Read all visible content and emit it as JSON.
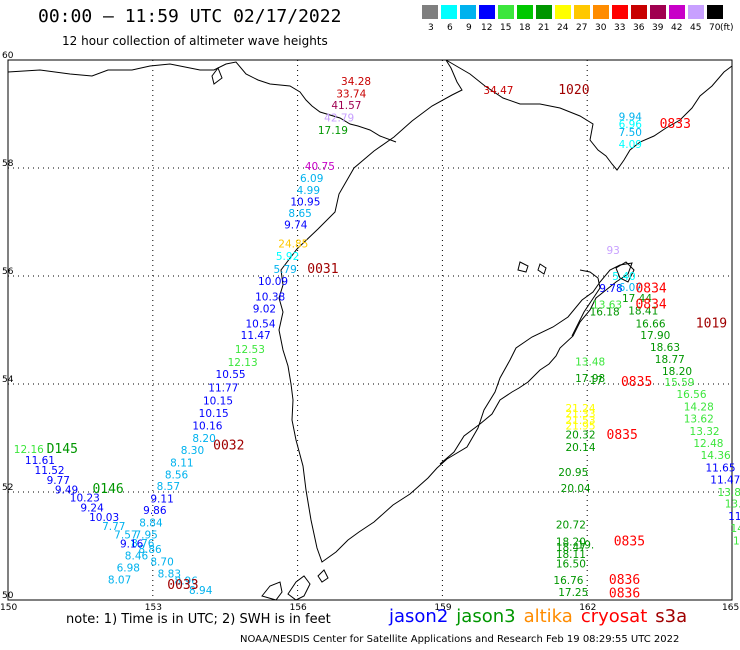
{
  "title": "00:00 – 11:59 UTC 02/17/2022",
  "subtitle": "12 hour collection of altimeter wave heights",
  "legend": {
    "unit": "(ft)",
    "items": [
      {
        "label": "3",
        "color": "#7f7f7f"
      },
      {
        "label": "6",
        "color": "#00ffff"
      },
      {
        "label": "9",
        "color": "#00b2ee"
      },
      {
        "label": "12",
        "color": "#0000ff"
      },
      {
        "label": "15",
        "color": "#3ce63c"
      },
      {
        "label": "18",
        "color": "#00c800"
      },
      {
        "label": "21",
        "color": "#009600"
      },
      {
        "label": "24",
        "color": "#ffff00"
      },
      {
        "label": "27",
        "color": "#ffc800"
      },
      {
        "label": "30",
        "color": "#ff8c00"
      },
      {
        "label": "33",
        "color": "#ff0000"
      },
      {
        "label": "36",
        "color": "#c80000"
      },
      {
        "label": "39",
        "color": "#a00050"
      },
      {
        "label": "42",
        "color": "#c800c8"
      },
      {
        "label": "45",
        "color": "#c8a0ff"
      },
      {
        "label": "70",
        "color": "#000000"
      }
    ]
  },
  "axes": {
    "lat_labels": [
      "60",
      "58",
      "56",
      "54",
      "52",
      "50"
    ],
    "lon_labels": [
      "150",
      "153",
      "156",
      "159",
      "162",
      "165"
    ]
  },
  "wave_labels": [
    {
      "t": "34.28",
      "c": "#c80000",
      "lon": 156.9,
      "lat": 59.54
    },
    {
      "t": "33.74",
      "c": "#c80000",
      "lon": 156.8,
      "lat": 59.31
    },
    {
      "t": "41.57",
      "c": "#a00050",
      "lon": 156.7,
      "lat": 59.09
    },
    {
      "t": "42.79",
      "c": "#c8a0ff",
      "lon": 156.55,
      "lat": 58.86
    },
    {
      "t": "17.19",
      "c": "#009600",
      "lon": 156.42,
      "lat": 58.63
    },
    {
      "t": "40.75",
      "c": "#c800c8",
      "lon": 156.15,
      "lat": 57.96
    },
    {
      "t": "6.09",
      "c": "#00b2ee",
      "lon": 156.05,
      "lat": 57.74
    },
    {
      "t": "4.99",
      "c": "#00b2ee",
      "lon": 155.98,
      "lat": 57.52
    },
    {
      "t": "10.95",
      "c": "#0000ff",
      "lon": 155.85,
      "lat": 57.31
    },
    {
      "t": "8.65",
      "c": "#00b2ee",
      "lon": 155.81,
      "lat": 57.09
    },
    {
      "t": "9.74",
      "c": "#0000ff",
      "lon": 155.72,
      "lat": 56.88
    },
    {
      "t": "24.85",
      "c": "#ffc800",
      "lon": 155.6,
      "lat": 56.53
    },
    {
      "t": "5.92",
      "c": "#00ffff",
      "lon": 155.55,
      "lat": 56.3
    },
    {
      "t": "5.79",
      "c": "#00b2ee",
      "lon": 155.5,
      "lat": 56.06
    },
    {
      "t": "10.09",
      "c": "#0000ff",
      "lon": 155.18,
      "lat": 55.83
    },
    {
      "t": "10.38",
      "c": "#0000ff",
      "lon": 155.12,
      "lat": 55.55
    },
    {
      "t": "9.02",
      "c": "#0000ff",
      "lon": 155.07,
      "lat": 55.32
    },
    {
      "t": "10.54",
      "c": "#0000ff",
      "lon": 154.92,
      "lat": 55.05
    },
    {
      "t": "11.47",
      "c": "#0000ff",
      "lon": 154.82,
      "lat": 54.83
    },
    {
      "t": "12.53",
      "c": "#3ce63c",
      "lon": 154.7,
      "lat": 54.57
    },
    {
      "t": "12.13",
      "c": "#3ce63c",
      "lon": 154.55,
      "lat": 54.33
    },
    {
      "t": "10.55",
      "c": "#0000ff",
      "lon": 154.3,
      "lat": 54.11
    },
    {
      "t": "11.77",
      "c": "#0000ff",
      "lon": 154.15,
      "lat": 53.86
    },
    {
      "t": "10.15",
      "c": "#0000ff",
      "lon": 154.04,
      "lat": 53.62
    },
    {
      "t": "10.15",
      "c": "#0000ff",
      "lon": 153.95,
      "lat": 53.39
    },
    {
      "t": "10.16",
      "c": "#0000ff",
      "lon": 153.82,
      "lat": 53.16
    },
    {
      "t": "8.20",
      "c": "#00b2ee",
      "lon": 153.82,
      "lat": 52.93
    },
    {
      "t": "8.30",
      "c": "#00b2ee",
      "lon": 153.58,
      "lat": 52.7
    },
    {
      "t": "8.11",
      "c": "#00b2ee",
      "lon": 153.36,
      "lat": 52.47
    },
    {
      "t": "8.56",
      "c": "#00b2ee",
      "lon": 153.25,
      "lat": 52.25
    },
    {
      "t": "8.57",
      "c": "#00b2ee",
      "lon": 153.08,
      "lat": 52.04
    },
    {
      "t": "9.11",
      "c": "#0000ff",
      "lon": 152.95,
      "lat": 51.81
    },
    {
      "t": "9.86",
      "c": "#0000ff",
      "lon": 152.8,
      "lat": 51.59
    },
    {
      "t": "8.84",
      "c": "#00b2ee",
      "lon": 152.72,
      "lat": 51.36
    },
    {
      "t": "7.95",
      "c": "#00b2ee",
      "lon": 152.62,
      "lat": 51.14
    },
    {
      "t": "8.76",
      "c": "#00b2ee",
      "lon": 152.55,
      "lat": 50.98
    },
    {
      "t": "8.46",
      "c": "#00b2ee",
      "lon": 152.42,
      "lat": 50.75
    },
    {
      "t": "6.98",
      "c": "#00b2ee",
      "lon": 152.25,
      "lat": 50.53
    },
    {
      "t": "8.07",
      "c": "#00b2ee",
      "lon": 152.07,
      "lat": 50.31
    },
    {
      "t": "8.86",
      "c": "#00b2ee",
      "lon": 152.7,
      "lat": 50.87
    },
    {
      "t": "8.70",
      "c": "#00b2ee",
      "lon": 152.95,
      "lat": 50.64
    },
    {
      "t": "8.83",
      "c": "#00b2ee",
      "lon": 153.1,
      "lat": 50.42
    },
    {
      "t": "8.96",
      "c": "#00b2ee",
      "lon": 153.45,
      "lat": 50.29
    },
    {
      "t": "8.94",
      "c": "#00b2ee",
      "lon": 153.75,
      "lat": 50.11
    },
    {
      "t": "12.16",
      "c": "#3ce63c",
      "lon": 150.12,
      "lat": 52.72
    },
    {
      "t": "11.61",
      "c": "#0000ff",
      "lon": 150.35,
      "lat": 52.52
    },
    {
      "t": "11.52",
      "c": "#0000ff",
      "lon": 150.55,
      "lat": 52.33
    },
    {
      "t": "9.77",
      "c": "#0000ff",
      "lon": 150.8,
      "lat": 52.15
    },
    {
      "t": "9.49",
      "c": "#0000ff",
      "lon": 150.97,
      "lat": 51.97
    },
    {
      "t": "10.23",
      "c": "#0000ff",
      "lon": 151.28,
      "lat": 51.82
    },
    {
      "t": "9.24",
      "c": "#0000ff",
      "lon": 151.5,
      "lat": 51.64
    },
    {
      "t": "10.03",
      "c": "#0000ff",
      "lon": 151.68,
      "lat": 51.46
    },
    {
      "t": "7.77",
      "c": "#00b2ee",
      "lon": 151.95,
      "lat": 51.3
    },
    {
      "t": "7.57",
      "c": "#00b2ee",
      "lon": 152.2,
      "lat": 51.14
    },
    {
      "t": "9.16",
      "c": "#0000ff",
      "lon": 152.32,
      "lat": 50.97
    },
    {
      "t": "34.47",
      "c": "#c80000",
      "lon": 159.85,
      "lat": 59.37
    },
    {
      "t": "9.94",
      "c": "#00b2ee",
      "lon": 162.65,
      "lat": 58.88
    },
    {
      "t": "6.96",
      "c": "#00ffff",
      "lon": 162.65,
      "lat": 58.74
    },
    {
      "t": "7.50",
      "c": "#00b2ee",
      "lon": 162.65,
      "lat": 58.59
    },
    {
      "t": "4.09",
      "c": "#00ffff",
      "lon": 162.65,
      "lat": 58.37
    },
    {
      "t": "93",
      "c": "#c8a0ff",
      "lon": 162.4,
      "lat": 56.41
    },
    {
      "t": "5.40",
      "c": "#00ffff",
      "lon": 162.52,
      "lat": 55.93
    },
    {
      "t": "9.78",
      "c": "#0000ff",
      "lon": 162.25,
      "lat": 55.7
    },
    {
      "t": "6.07",
      "c": "#00b2ee",
      "lon": 162.65,
      "lat": 55.72
    },
    {
      "t": "17.44",
      "c": "#009600",
      "lon": 162.72,
      "lat": 55.52
    },
    {
      "t": "13.63",
      "c": "#3ce63c",
      "lon": 162.1,
      "lat": 55.4
    },
    {
      "t": "18.41",
      "c": "#009600",
      "lon": 162.85,
      "lat": 55.29
    },
    {
      "t": "16.18",
      "c": "#009600",
      "lon": 162.05,
      "lat": 55.27
    },
    {
      "t": "16.66",
      "c": "#009600",
      "lon": 163.0,
      "lat": 55.05
    },
    {
      "t": "17.90",
      "c": "#009600",
      "lon": 163.1,
      "lat": 54.83
    },
    {
      "t": "18.63",
      "c": "#009600",
      "lon": 163.3,
      "lat": 54.61
    },
    {
      "t": "18.77",
      "c": "#009600",
      "lon": 163.4,
      "lat": 54.39
    },
    {
      "t": "18.20",
      "c": "#009600",
      "lon": 163.55,
      "lat": 54.17
    },
    {
      "t": "15.59",
      "c": "#3ce63c",
      "lon": 163.6,
      "lat": 53.96
    },
    {
      "t": "16.56",
      "c": "#3ce63c",
      "lon": 163.85,
      "lat": 53.74
    },
    {
      "t": "14.28",
      "c": "#3ce63c",
      "lon": 164.0,
      "lat": 53.51
    },
    {
      "t": "13.62",
      "c": "#3ce63c",
      "lon": 164.0,
      "lat": 53.29
    },
    {
      "t": "13.32",
      "c": "#3ce63c",
      "lon": 164.12,
      "lat": 53.06
    },
    {
      "t": "12.48",
      "c": "#3ce63c",
      "lon": 164.2,
      "lat": 52.83
    },
    {
      "t": "14.36",
      "c": "#3ce63c",
      "lon": 164.35,
      "lat": 52.61
    },
    {
      "t": "11.65",
      "c": "#0000ff",
      "lon": 164.45,
      "lat": 52.38
    },
    {
      "t": "11.47",
      "c": "#0000ff",
      "lon": 164.55,
      "lat": 52.16
    },
    {
      "t": "13.85",
      "c": "#3ce63c",
      "lon": 164.7,
      "lat": 51.93
    },
    {
      "t": "13.3",
      "c": "#3ce63c",
      "lon": 164.85,
      "lat": 51.71
    },
    {
      "t": "11.9",
      "c": "#0000ff",
      "lon": 164.92,
      "lat": 51.48
    },
    {
      "t": "14.",
      "c": "#3ce63c",
      "lon": 164.97,
      "lat": 51.26
    },
    {
      "t": "14",
      "c": "#3ce63c",
      "lon": 165.02,
      "lat": 51.03
    },
    {
      "t": "13.48",
      "c": "#3ce63c",
      "lon": 161.75,
      "lat": 54.34
    },
    {
      "t": "17.98",
      "c": "#009600",
      "lon": 161.75,
      "lat": 54.04
    },
    {
      "t": "17.",
      "c": "#009600",
      "lon": 162.05,
      "lat": 54.0
    },
    {
      "t": "21.24",
      "c": "#ffff00",
      "lon": 161.55,
      "lat": 53.48
    },
    {
      "t": "21.33",
      "c": "#ffff00",
      "lon": 161.55,
      "lat": 53.38
    },
    {
      "t": "21.53",
      "c": "#ffff00",
      "lon": 161.55,
      "lat": 53.26
    },
    {
      "t": "21.95",
      "c": "#ffff00",
      "lon": 161.55,
      "lat": 53.16
    },
    {
      "t": "20.32",
      "c": "#009600",
      "lon": 161.55,
      "lat": 52.99
    },
    {
      "t": "20.14",
      "c": "#009600",
      "lon": 161.55,
      "lat": 52.76
    },
    {
      "t": "20.95",
      "c": "#009600",
      "lon": 161.4,
      "lat": 52.3
    },
    {
      "t": "20.04",
      "c": "#009600",
      "lon": 161.45,
      "lat": 52.0
    },
    {
      "t": "20.72",
      "c": "#009600",
      "lon": 161.35,
      "lat": 51.32
    },
    {
      "t": "18.20",
      "c": "#009600",
      "lon": 161.35,
      "lat": 51.01
    },
    {
      "t": "18.47",
      "c": "#009600",
      "lon": 161.35,
      "lat": 50.91
    },
    {
      "t": "18.11",
      "c": "#009600",
      "lon": 161.35,
      "lat": 50.78
    },
    {
      "t": "16.50",
      "c": "#009600",
      "lon": 161.35,
      "lat": 50.6
    },
    {
      "t": "16.76",
      "c": "#009600",
      "lon": 161.3,
      "lat": 50.3
    },
    {
      "t": "17.25",
      "c": "#009600",
      "lon": 161.4,
      "lat": 50.07
    },
    {
      "t": "19.",
      "c": "#009600",
      "lon": 161.8,
      "lat": 50.95
    }
  ],
  "time_labels": [
    {
      "t": "1020",
      "c": "#a00000",
      "lon": 161.4,
      "lat": 59.37
    },
    {
      "t": "0833",
      "c": "#ff0000",
      "lon": 163.5,
      "lat": 58.74
    },
    {
      "t": "0031",
      "c": "#a00000",
      "lon": 156.2,
      "lat": 56.06
    },
    {
      "t": "0834",
      "c": "#ff0000",
      "lon": 163.0,
      "lat": 55.69
    },
    {
      "t": "0834",
      "c": "#ff0000",
      "lon": 163.0,
      "lat": 55.4
    },
    {
      "t": "1019",
      "c": "#a00000",
      "lon": 164.25,
      "lat": 55.05
    },
    {
      "t": "0835",
      "c": "#ff0000",
      "lon": 162.7,
      "lat": 53.96
    },
    {
      "t": "0835",
      "c": "#ff0000",
      "lon": 162.4,
      "lat": 52.98
    },
    {
      "t": "0032",
      "c": "#a00000",
      "lon": 154.25,
      "lat": 52.79
    },
    {
      "t": "D145",
      "c": "#009600",
      "lon": 150.8,
      "lat": 52.72
    },
    {
      "t": "0146",
      "c": "#009600",
      "lon": 151.75,
      "lat": 51.98
    },
    {
      "t": "0835",
      "c": "#ff0000",
      "lon": 162.55,
      "lat": 51.01
    },
    {
      "t": "0836",
      "c": "#ff0000",
      "lon": 162.45,
      "lat": 50.3
    },
    {
      "t": "0836",
      "c": "#ff0000",
      "lon": 162.45,
      "lat": 50.05
    },
    {
      "t": "0033",
      "c": "#a00000",
      "lon": 153.3,
      "lat": 50.2
    }
  ],
  "note": "note:  1) Time is in UTC;  2) SWH is in feet",
  "satellites": [
    {
      "label": "jason2",
      "color": "#0000ff"
    },
    {
      "label": "jason3",
      "color": "#009600"
    },
    {
      "label": "altika",
      "color": "#ff8c00"
    },
    {
      "label": "cryosat",
      "color": "#ff0000"
    },
    {
      "label": "s3a",
      "color": "#a00000"
    }
  ],
  "credit": "NOAA/NESDIS Center for Satellite Applications and Research    Feb 19 08:29:55 UTC 2022"
}
